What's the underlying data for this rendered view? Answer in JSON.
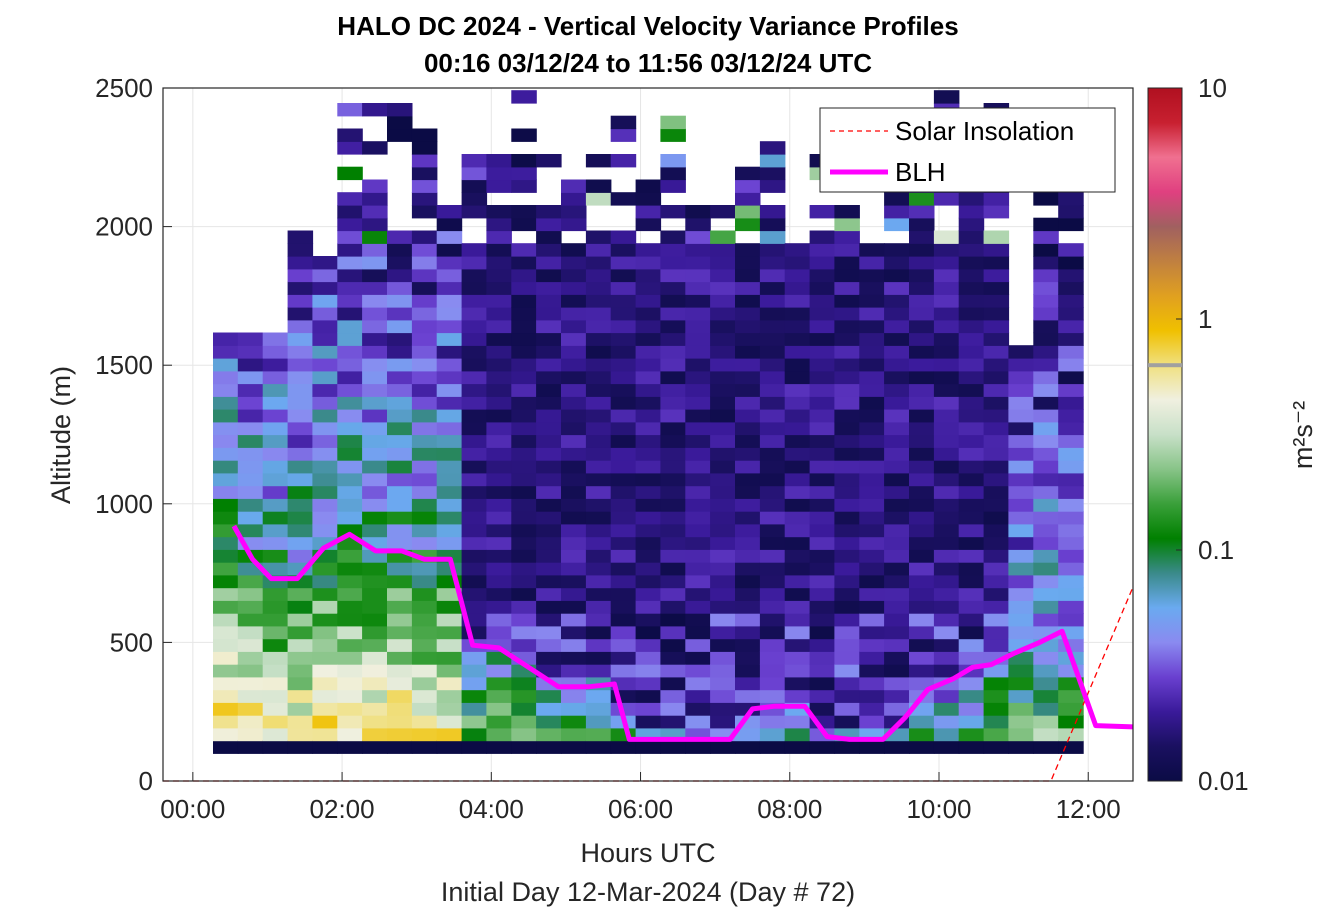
{
  "chart_data": {
    "type": "heatmap",
    "title": "HALO DC 2024 - Vertical Velocity Variance Profiles",
    "subtitle": "00:16 03/12/24 to 11:56 03/12/24  UTC",
    "xlabel": "Hours UTC",
    "xlabel2": "Initial Day 12-Mar-2024 (Day # 72)",
    "ylabel": "Altitude (m)",
    "colorbar_label": "m²s⁻²",
    "x_range_hours": [
      -0.4,
      12.6
    ],
    "ylim": [
      0,
      2500
    ],
    "x_ticks": [
      "00:00",
      "02:00",
      "04:00",
      "06:00",
      "08:00",
      "10:00",
      "12:00"
    ],
    "y_ticks": [
      "0",
      "500",
      "1000",
      "1500",
      "2000",
      "2500"
    ],
    "colorbar": {
      "scale": "log",
      "range": [
        0.01,
        10
      ],
      "tick_labels": [
        "0.01",
        "0.1",
        "1",
        "10"
      ],
      "colors": [
        "#0b0b45",
        "#1a1060",
        "#3a1a9a",
        "#6a40d0",
        "#8a8af0",
        "#6aaaf0",
        "#3a8a8a",
        "#008000",
        "#3aa03a",
        "#88c488",
        "#c8e0c8",
        "#f0f0e0",
        "#f0e080",
        "#f0c000",
        "#e0a020",
        "#c08040",
        "#a06060",
        "#e04080",
        "#f07090",
        "#c82030",
        "#b01020"
      ]
    },
    "grid": true,
    "legend_position": "top-right",
    "series": [
      {
        "name": "Solar Insolation",
        "style": "dashed",
        "color": "#ff0000",
        "x": [
          -0.4,
          11.5,
          12.6
        ],
        "y": [
          0,
          0,
          700
        ]
      },
      {
        "name": "BLH",
        "style": "solid",
        "color": "#ff00ff",
        "x": [
          0.55,
          0.8,
          1.05,
          1.4,
          1.75,
          2.1,
          2.45,
          2.8,
          3.1,
          3.45,
          3.75,
          4.1,
          4.5,
          4.9,
          5.3,
          5.65,
          5.85,
          6.2,
          6.6,
          7.2,
          7.5,
          7.8,
          8.2,
          8.5,
          8.8,
          9.25,
          9.55,
          9.85,
          10.2,
          10.45,
          10.7,
          11.0,
          11.35,
          11.65,
          11.85,
          12.1,
          12.6
        ],
        "y": [
          920,
          800,
          730,
          730,
          840,
          890,
          830,
          830,
          800,
          800,
          490,
          480,
          410,
          340,
          340,
          350,
          150,
          150,
          150,
          150,
          260,
          270,
          270,
          160,
          150,
          150,
          230,
          330,
          370,
          410,
          420,
          460,
          500,
          540,
          390,
          200,
          195
        ]
      }
    ]
  }
}
